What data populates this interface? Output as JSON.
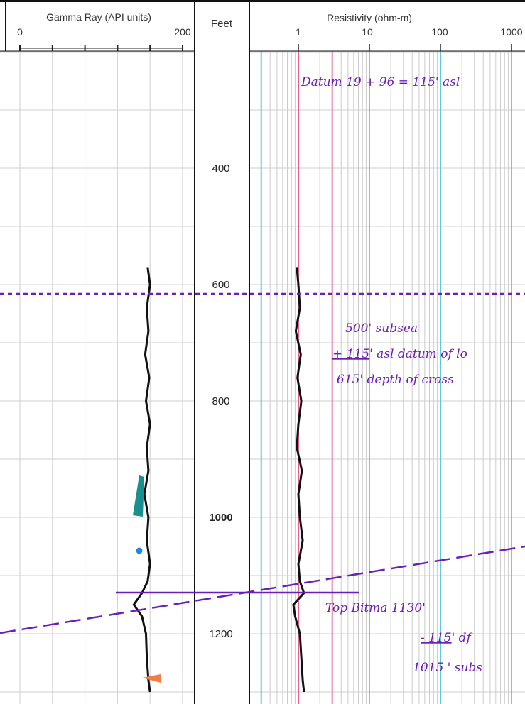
{
  "chart_data": {
    "type": "line",
    "tracks": {
      "gamma": {
        "title": "Gamma Ray (API units)",
        "xlim": [
          0,
          200
        ],
        "tick_labels": [
          "0",
          "200"
        ],
        "series": {
          "depth": [
            570,
            600,
            640,
            680,
            720,
            760,
            800,
            840,
            880,
            920,
            960,
            1000,
            1040,
            1080,
            1110,
            1130,
            1150,
            1170,
            1200,
            1240,
            1280,
            1300
          ],
          "values": [
            157,
            160,
            156,
            158,
            154,
            159,
            155,
            160,
            156,
            158,
            153,
            158,
            156,
            160,
            157,
            150,
            140,
            150,
            155,
            156,
            158,
            160
          ]
        }
      },
      "depth": {
        "title": "Feet",
        "ticks": [
          {
            "value": 400,
            "label": "400"
          },
          {
            "value": 600,
            "label": "600"
          },
          {
            "value": 800,
            "label": "800"
          },
          {
            "value": 1000,
            "label": "1000"
          },
          {
            "value": 1200,
            "label": "1200"
          }
        ],
        "ylim": [
          110,
          1310
        ]
      },
      "resistivity": {
        "title": "Resistivity (ohm-m)",
        "scale": "log",
        "tick_labels": [
          "1",
          "10",
          "100",
          "1000"
        ],
        "reference_lines": [
          {
            "value": 0.3,
            "color": "#5bc8e0"
          },
          {
            "value": 1,
            "color": "#e65f8e"
          },
          {
            "value": 3,
            "color": "#e07aa0"
          },
          {
            "value": 100,
            "color": "#5bc8e0"
          }
        ],
        "series": {
          "depth": [
            570,
            600,
            640,
            680,
            720,
            760,
            800,
            840,
            880,
            920,
            960,
            1000,
            1040,
            1080,
            1110,
            1130,
            1150,
            1170,
            1200,
            1240,
            1280,
            1300
          ],
          "values": [
            0.95,
            1.0,
            1.05,
            0.92,
            1.08,
            0.97,
            1.1,
            1.0,
            0.95,
            1.12,
            1.0,
            1.05,
            1.15,
            1.0,
            1.05,
            1.2,
            0.85,
            0.9,
            1.05,
            1.1,
            1.15,
            1.2
          ]
        }
      }
    },
    "annotations": {
      "datum": "Datum 19 + 96 = 115' asl",
      "calc_line1": "500' subsea",
      "calc_line2_underlined": "+ 115",
      "calc_line2_rest": "' asl datum of lo",
      "calc_line3": "615' depth of cross",
      "top_line1": "Top Bitma 1130'",
      "top_line2_underlined": "- 115",
      "top_line2_rest": "' df",
      "top_line3": "1015 ' subs"
    },
    "markers": {
      "horizontal_marker_depth": 615,
      "top_formation_depth": 1130
    },
    "colors": {
      "annotation": "#6a1fb5",
      "gamma_shade": "#1a8f8f",
      "marker_dot": "#1e88e5",
      "marker_triangle": "#f07c4a"
    }
  }
}
